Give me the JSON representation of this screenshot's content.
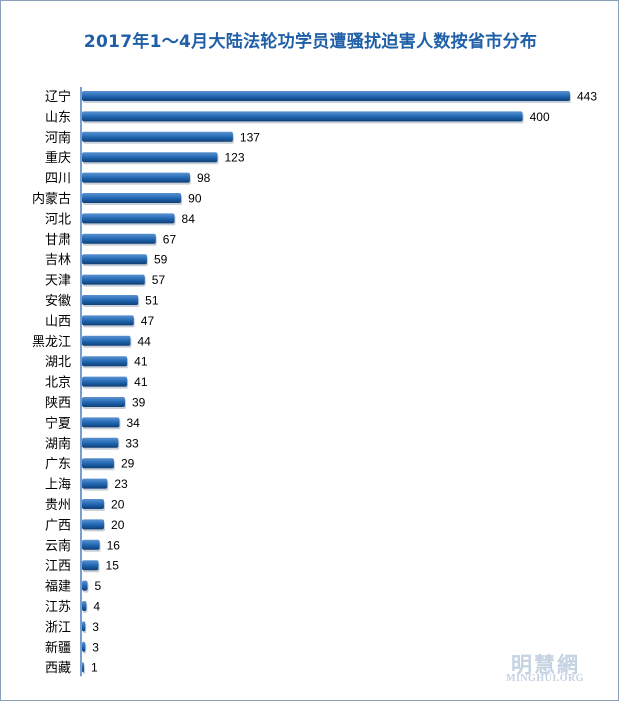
{
  "chart_data": {
    "type": "bar",
    "orientation": "horizontal",
    "title": "2017年1～4月大陆法轮功学员遭骚扰迫害人数按省市分布",
    "xlabel": "",
    "ylabel": "",
    "xlim": [
      0,
      443
    ],
    "grid": false,
    "legend": "none",
    "categories": [
      "辽宁",
      "山东",
      "河南",
      "重庆",
      "四川",
      "内蒙古",
      "河北",
      "甘肃",
      "吉林",
      "天津",
      "安徽",
      "山西",
      "黑龙江",
      "湖北",
      "北京",
      "陕西",
      "宁夏",
      "湖南",
      "广东",
      "上海",
      "贵州",
      "广西",
      "云南",
      "江西",
      "福建",
      "江苏",
      "浙江",
      "新疆",
      "西藏"
    ],
    "values": [
      443,
      400,
      137,
      123,
      98,
      90,
      84,
      67,
      59,
      57,
      51,
      47,
      44,
      41,
      41,
      39,
      34,
      33,
      29,
      23,
      20,
      20,
      16,
      15,
      5,
      4,
      3,
      3,
      1
    ]
  },
  "colors": {
    "bar": "#1f65b0",
    "bar_dark": "#0f3f75",
    "bar_light": "#5b93d3",
    "title": "#1f5fa8",
    "axis": "#4a7fc0"
  },
  "watermark": {
    "name_cn": "明慧網",
    "name_en": "MINGHUI.ORG"
  }
}
